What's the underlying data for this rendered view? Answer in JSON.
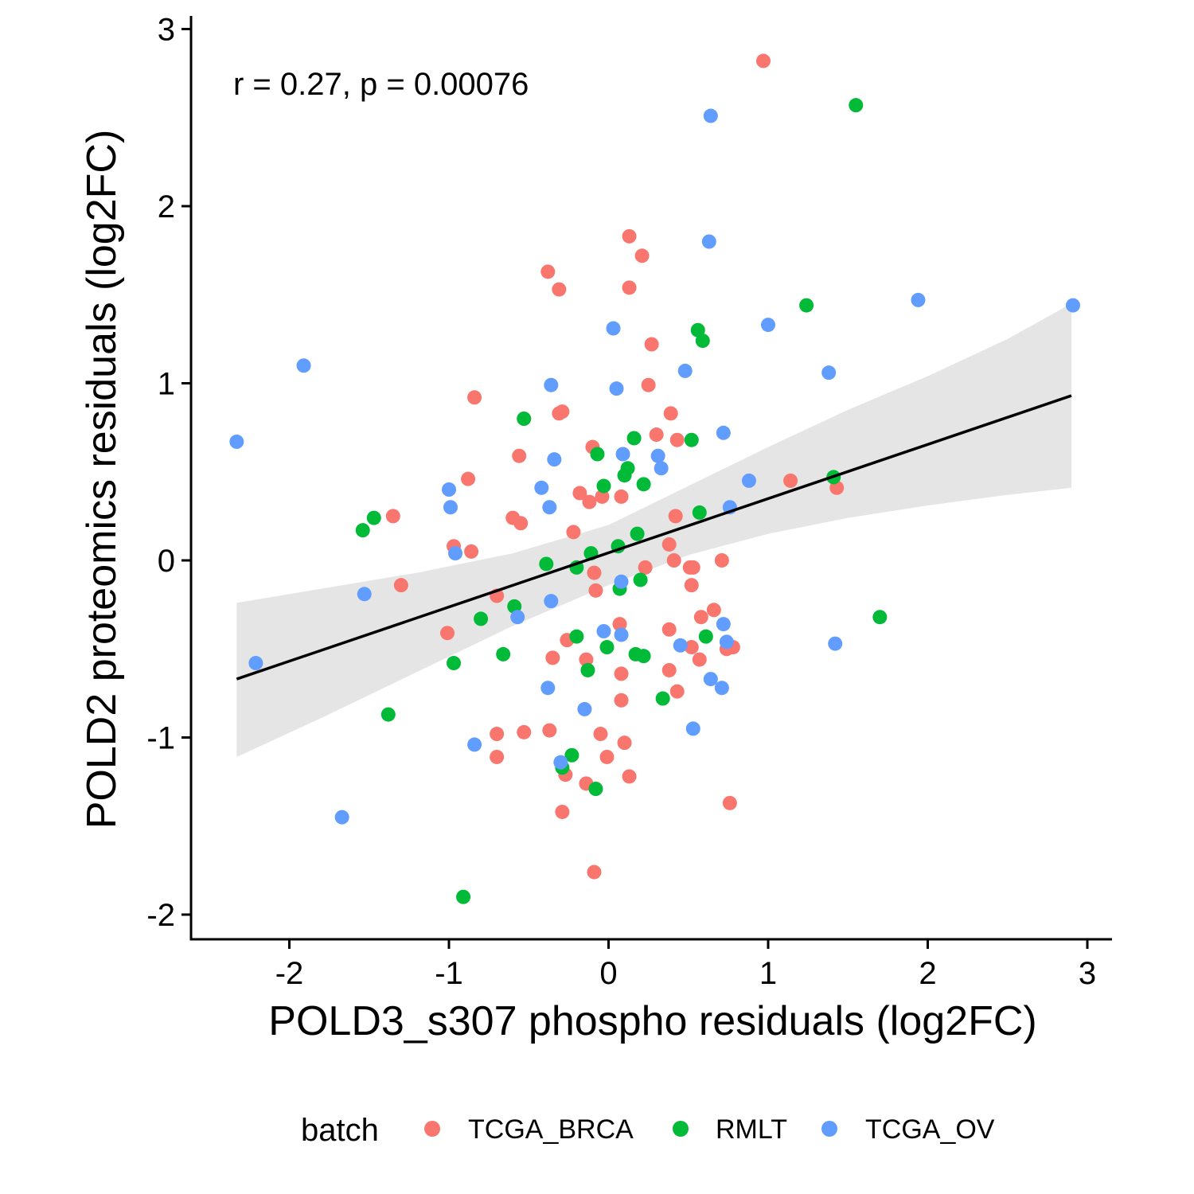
{
  "chart_data": {
    "type": "scatter",
    "title": "",
    "xlabel": "POLD3_s307 phospho residuals (log2FC)",
    "ylabel": "POLD2 proteomics residuals (log2FC)",
    "xlim": [
      -2.6,
      3.15
    ],
    "ylim": [
      -2.15,
      3.05
    ],
    "x_ticks": [
      -2,
      -1,
      0,
      1,
      2,
      3
    ],
    "x_tick_labels": [
      "-2",
      "-1",
      "0",
      "1",
      "2",
      "3"
    ],
    "y_ticks": [
      -2,
      -1,
      0,
      1,
      2,
      3
    ],
    "y_tick_labels": [
      "-2",
      "-1",
      "0",
      "1",
      "2",
      "3"
    ],
    "grid": false,
    "annotation": "r = 0.27, p = 0.00076",
    "legend": {
      "title": "batch",
      "position": "bottom"
    },
    "regression": {
      "x": [
        -2.33,
        2.9
      ],
      "y": [
        -0.67,
        0.93
      ],
      "band_x": [
        -2.33,
        -1.8,
        -1.2,
        -0.6,
        0.0,
        0.5,
        1.0,
        1.5,
        2.0,
        2.5,
        2.9
      ],
      "band_upper": [
        -0.24,
        -0.16,
        -0.07,
        0.04,
        0.2,
        0.42,
        0.64,
        0.85,
        1.04,
        1.25,
        1.45
      ],
      "band_lower": [
        -1.11,
        -0.89,
        -0.63,
        -0.37,
        -0.14,
        0.03,
        0.15,
        0.24,
        0.31,
        0.37,
        0.41
      ]
    },
    "series": [
      {
        "name": "TCGA_BRCA",
        "color": "#F8766D",
        "points": [
          [
            0.97,
            2.82
          ],
          [
            0.13,
            1.83
          ],
          [
            0.21,
            1.72
          ],
          [
            -0.38,
            1.63
          ],
          [
            -0.31,
            1.53
          ],
          [
            0.13,
            1.54
          ],
          [
            0.27,
            1.22
          ],
          [
            0.25,
            0.99
          ],
          [
            -0.84,
            0.92
          ],
          [
            -0.29,
            0.84
          ],
          [
            -0.31,
            0.83
          ],
          [
            0.39,
            0.83
          ],
          [
            0.3,
            0.71
          ],
          [
            0.43,
            0.68
          ],
          [
            -0.1,
            0.64
          ],
          [
            -0.56,
            0.59
          ],
          [
            -0.88,
            0.46
          ],
          [
            1.14,
            0.45
          ],
          [
            1.43,
            0.41
          ],
          [
            -0.18,
            0.38
          ],
          [
            -0.12,
            0.33
          ],
          [
            -0.04,
            0.36
          ],
          [
            0.08,
            0.36
          ],
          [
            -1.35,
            0.25
          ],
          [
            0.42,
            0.25
          ],
          [
            -0.6,
            0.24
          ],
          [
            -0.55,
            0.21
          ],
          [
            -0.22,
            0.16
          ],
          [
            0.38,
            0.09
          ],
          [
            -0.97,
            0.08
          ],
          [
            -0.86,
            0.05
          ],
          [
            0.41,
            0.0
          ],
          [
            0.71,
            0.0
          ],
          [
            0.51,
            -0.04
          ],
          [
            0.53,
            -0.04
          ],
          [
            0.23,
            -0.04
          ],
          [
            -0.09,
            -0.07
          ],
          [
            -1.3,
            -0.14
          ],
          [
            0.52,
            -0.14
          ],
          [
            -0.08,
            -0.17
          ],
          [
            -0.7,
            -0.2
          ],
          [
            0.66,
            -0.28
          ],
          [
            0.58,
            -0.32
          ],
          [
            0.07,
            -0.36
          ],
          [
            0.38,
            -0.39
          ],
          [
            -1.01,
            -0.41
          ],
          [
            -0.26,
            -0.45
          ],
          [
            0.52,
            -0.49
          ],
          [
            0.74,
            -0.5
          ],
          [
            0.78,
            -0.49
          ],
          [
            0.57,
            -0.56
          ],
          [
            -0.35,
            -0.55
          ],
          [
            -0.14,
            -0.56
          ],
          [
            0.38,
            -0.62
          ],
          [
            0.08,
            -0.64
          ],
          [
            0.43,
            -0.74
          ],
          [
            0.08,
            -0.79
          ],
          [
            -0.7,
            -0.98
          ],
          [
            -0.53,
            -0.97
          ],
          [
            -0.37,
            -0.96
          ],
          [
            -0.05,
            -0.98
          ],
          [
            0.1,
            -1.03
          ],
          [
            -0.7,
            -1.11
          ],
          [
            -0.01,
            -1.11
          ],
          [
            -0.27,
            -1.21
          ],
          [
            0.13,
            -1.22
          ],
          [
            -0.14,
            -1.26
          ],
          [
            0.76,
            -1.37
          ],
          [
            -0.29,
            -1.42
          ],
          [
            -0.09,
            -1.76
          ]
        ]
      },
      {
        "name": "RMLT",
        "color": "#00BA38",
        "points": [
          [
            1.55,
            2.57
          ],
          [
            1.24,
            1.44
          ],
          [
            0.56,
            1.3
          ],
          [
            0.59,
            1.24
          ],
          [
            -0.53,
            0.8
          ],
          [
            0.16,
            0.69
          ],
          [
            0.52,
            0.68
          ],
          [
            -0.07,
            0.6
          ],
          [
            0.12,
            0.52
          ],
          [
            0.1,
            0.48
          ],
          [
            -0.03,
            0.42
          ],
          [
            0.22,
            0.43
          ],
          [
            1.41,
            0.47
          ],
          [
            -1.47,
            0.24
          ],
          [
            -1.54,
            0.17
          ],
          [
            0.57,
            0.27
          ],
          [
            0.18,
            0.15
          ],
          [
            0.06,
            0.08
          ],
          [
            -0.11,
            0.04
          ],
          [
            -0.39,
            -0.02
          ],
          [
            -0.2,
            -0.04
          ],
          [
            0.2,
            -0.11
          ],
          [
            0.07,
            -0.16
          ],
          [
            -0.59,
            -0.26
          ],
          [
            -0.8,
            -0.33
          ],
          [
            1.7,
            -0.32
          ],
          [
            -0.2,
            -0.43
          ],
          [
            0.61,
            -0.43
          ],
          [
            -0.01,
            -0.49
          ],
          [
            -0.66,
            -0.53
          ],
          [
            0.17,
            -0.53
          ],
          [
            0.22,
            -0.54
          ],
          [
            -0.97,
            -0.58
          ],
          [
            -0.13,
            -0.62
          ],
          [
            0.34,
            -0.78
          ],
          [
            -1.38,
            -0.87
          ],
          [
            -0.23,
            -1.1
          ],
          [
            -0.29,
            -1.17
          ],
          [
            -0.08,
            -1.29
          ],
          [
            -0.91,
            -1.9
          ]
        ]
      },
      {
        "name": "TCGA_OV",
        "color": "#619CFF",
        "points": [
          [
            0.64,
            2.51
          ],
          [
            0.63,
            1.8
          ],
          [
            1.94,
            1.47
          ],
          [
            2.91,
            1.44
          ],
          [
            1.0,
            1.33
          ],
          [
            0.03,
            1.31
          ],
          [
            -1.91,
            1.1
          ],
          [
            1.38,
            1.06
          ],
          [
            0.48,
            1.07
          ],
          [
            -0.36,
            0.99
          ],
          [
            0.05,
            0.97
          ],
          [
            0.72,
            0.72
          ],
          [
            -2.33,
            0.67
          ],
          [
            0.31,
            0.59
          ],
          [
            0.09,
            0.6
          ],
          [
            -0.34,
            0.57
          ],
          [
            0.33,
            0.52
          ],
          [
            0.88,
            0.45
          ],
          [
            -0.42,
            0.41
          ],
          [
            -1.0,
            0.4
          ],
          [
            -0.99,
            0.3
          ],
          [
            -0.37,
            0.3
          ],
          [
            0.76,
            0.3
          ],
          [
            -0.96,
            0.04
          ],
          [
            -1.53,
            -0.19
          ],
          [
            0.08,
            -0.12
          ],
          [
            -0.36,
            -0.23
          ],
          [
            -0.57,
            -0.32
          ],
          [
            0.72,
            -0.36
          ],
          [
            -0.03,
            -0.4
          ],
          [
            0.08,
            -0.42
          ],
          [
            0.45,
            -0.48
          ],
          [
            0.74,
            -0.46
          ],
          [
            1.42,
            -0.47
          ],
          [
            -2.21,
            -0.58
          ],
          [
            0.64,
            -0.67
          ],
          [
            0.71,
            -0.72
          ],
          [
            -0.38,
            -0.72
          ],
          [
            -0.15,
            -0.84
          ],
          [
            0.53,
            -0.95
          ],
          [
            -0.84,
            -1.04
          ],
          [
            -0.3,
            -1.14
          ],
          [
            -1.67,
            -1.45
          ]
        ]
      }
    ]
  }
}
